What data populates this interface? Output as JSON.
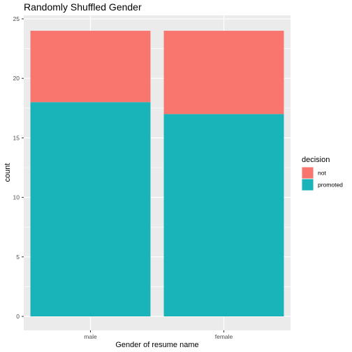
{
  "chart_data": {
    "type": "bar",
    "stacked": true,
    "title": "Randomly Shuffled Gender",
    "xlabel": "Gender of resume name",
    "ylabel": "count",
    "categories": [
      "male",
      "female"
    ],
    "series": [
      {
        "name": "promoted",
        "values": [
          18,
          17
        ],
        "color": "#19B4B9"
      },
      {
        "name": "not",
        "values": [
          6,
          7
        ],
        "color": "#F8766D"
      }
    ],
    "ylim": [
      0,
      25
    ],
    "yticks": [
      0,
      5,
      10,
      15,
      20,
      25
    ],
    "grid": true,
    "legend": {
      "title": "decision",
      "position": "right",
      "entries": [
        {
          "name": "not",
          "color": "#F8766D"
        },
        {
          "name": "promoted",
          "color": "#19B4B9"
        }
      ]
    }
  }
}
